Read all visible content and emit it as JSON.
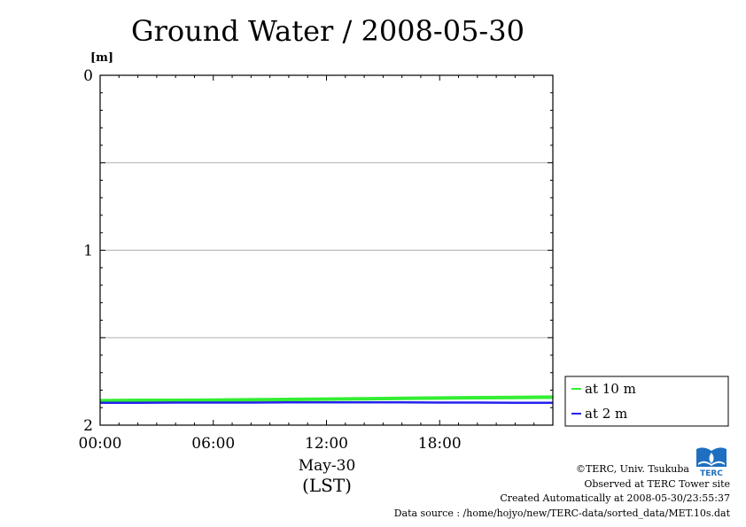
{
  "chart_data": {
    "type": "line",
    "title": "Ground Water / 2008-05-30",
    "y_unit": "[m]",
    "ylim": [
      0,
      2
    ],
    "y_inverted": true,
    "y_ticks": [
      "0",
      "1",
      "2"
    ],
    "xlim": [
      0,
      24
    ],
    "x_ticks": [
      {
        "value": 0,
        "label": "00:00"
      },
      {
        "value": 6,
        "label": "06:00"
      },
      {
        "value": 12,
        "label": "12:00"
      },
      {
        "value": 18,
        "label": "18:00"
      }
    ],
    "x_date_label": "May-30",
    "x_zone_label": "(LST)",
    "gridlines": [
      0.5,
      1.0,
      1.5
    ],
    "legend_position": "right-bottom",
    "series": [
      {
        "name": "at 10 m",
        "color": "#33ee33",
        "x": [
          0,
          2,
          4,
          6,
          8,
          10,
          12,
          14,
          16,
          18,
          20,
          22,
          24
        ],
        "y": [
          1.86,
          1.858,
          1.858,
          1.857,
          1.855,
          1.853,
          1.851,
          1.849,
          1.847,
          1.845,
          1.843,
          1.842,
          1.84
        ]
      },
      {
        "name": "at 2 m",
        "color": "#2222ee",
        "x": [
          0,
          2,
          4,
          6,
          8,
          10,
          12,
          14,
          16,
          18,
          20,
          22,
          24
        ],
        "y": [
          1.872,
          1.872,
          1.871,
          1.871,
          1.871,
          1.87,
          1.87,
          1.87,
          1.87,
          1.871,
          1.871,
          1.872,
          1.872
        ]
      }
    ]
  },
  "footer": {
    "copyright": "©TERC, Univ. Tsukuba",
    "observed": "Observed at TERC Tower site",
    "created": "Created Automatically at 2008-05-30/23:55:37",
    "source": "Data source : /home/hojyo/new/TERC-data/sorted_data/MET.10s.dat"
  },
  "logo": {
    "name": "terc-logo-icon",
    "text": "TERC",
    "color": "#1e6fc0"
  }
}
